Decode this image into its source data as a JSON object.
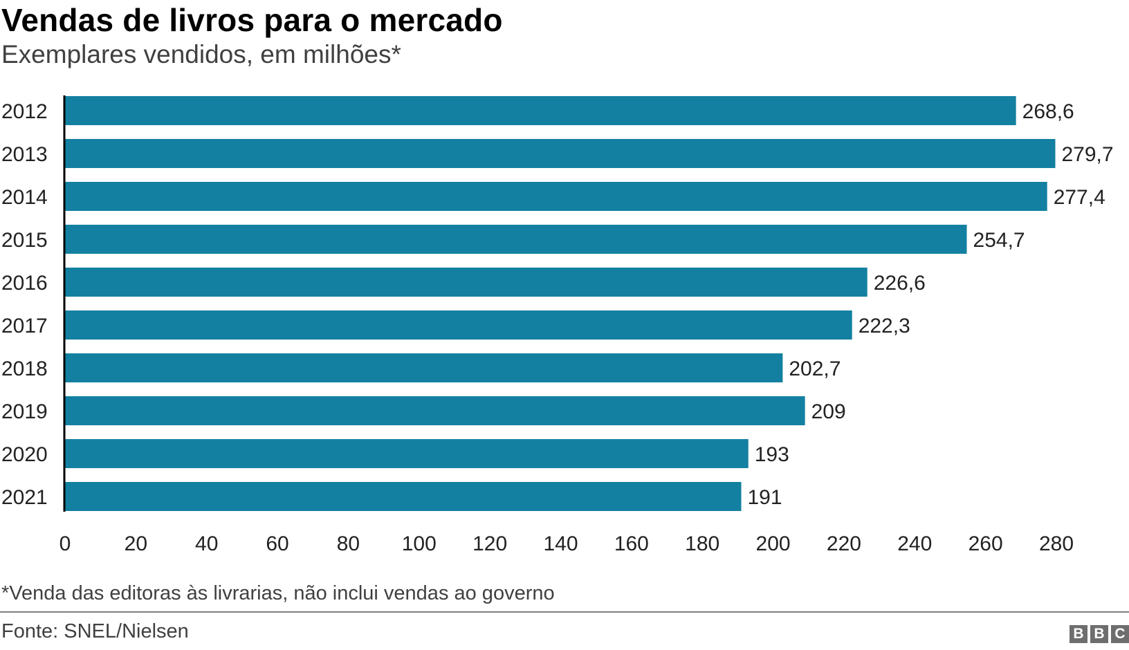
{
  "header": {
    "title": "Vendas de livros para o mercado",
    "subtitle": "Exemplares vendidos, em milhões*"
  },
  "footer": {
    "footnote": "*Venda das editoras às livrarias, não inclui vendas ao governo",
    "source": "Fonte: SNEL/Nielsen",
    "logo_letters": [
      "B",
      "B",
      "C"
    ]
  },
  "colors": {
    "bar": "#1380a1",
    "axis": "#000000",
    "text": "#222222"
  },
  "chart_data": {
    "type": "bar",
    "orientation": "horizontal",
    "title": "Vendas de livros para o mercado",
    "subtitle": "Exemplares vendidos, em milhões*",
    "categories": [
      "2012",
      "2013",
      "2014",
      "2015",
      "2016",
      "2017",
      "2018",
      "2019",
      "2020",
      "2021"
    ],
    "values": [
      268.6,
      279.7,
      277.4,
      254.7,
      226.6,
      222.3,
      202.7,
      209,
      193,
      191
    ],
    "value_labels": [
      "268,6",
      "279,7",
      "277,4",
      "254,7",
      "226,6",
      "222,3",
      "202,7",
      "209",
      "193",
      "191"
    ],
    "xlim": [
      0,
      280
    ],
    "xticks": [
      0,
      20,
      40,
      60,
      80,
      100,
      120,
      140,
      160,
      180,
      200,
      220,
      240,
      260,
      280
    ],
    "xlabel": "",
    "ylabel": "",
    "grid": false,
    "legend": "none"
  }
}
